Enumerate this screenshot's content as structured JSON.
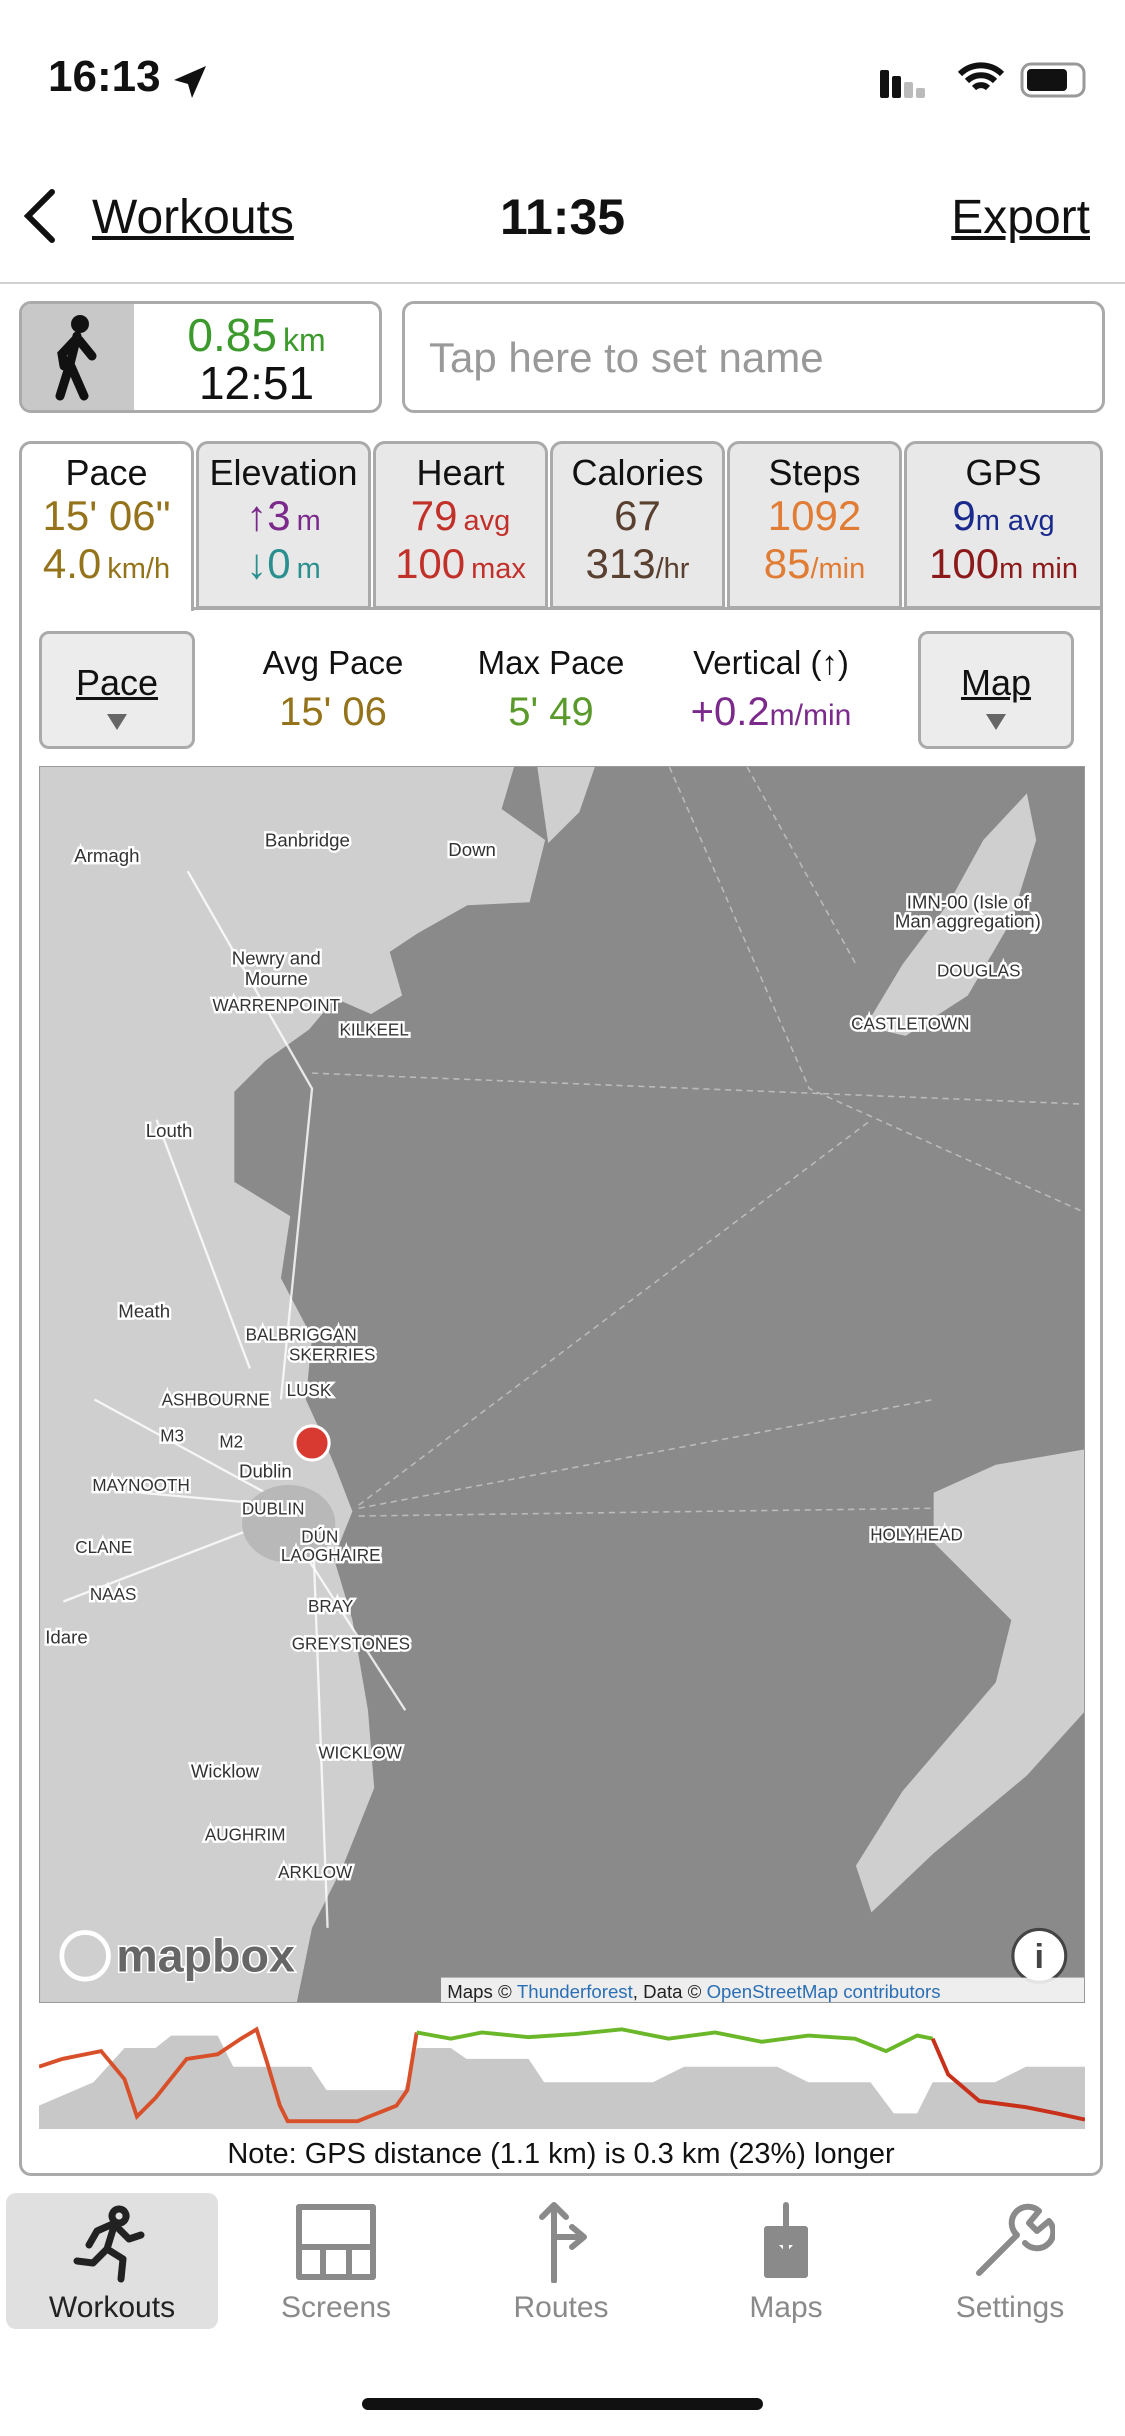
{
  "status_bar": {
    "time": "16:13"
  },
  "nav": {
    "back": "Workouts",
    "title": "11:35",
    "action": "Export"
  },
  "summary": {
    "distance": "0.85",
    "distance_unit": "km",
    "duration": "12:51",
    "name_placeholder": "Tap here to set name"
  },
  "tabs": [
    {
      "label": "Pace",
      "line1": [
        "15' 06\""
      ],
      "line2": [
        "4.0",
        "km/h"
      ]
    },
    {
      "label": "Elevation",
      "line1": [
        "↑3",
        "m"
      ],
      "line2": [
        "↓0",
        "m"
      ]
    },
    {
      "label": "Heart",
      "line1": [
        "79",
        "avg"
      ],
      "line2": [
        "100",
        "max"
      ]
    },
    {
      "label": "Calories",
      "line1": [
        "67"
      ],
      "line2": [
        "313",
        "/hr"
      ]
    },
    {
      "label": "Steps",
      "line1": [
        "1092"
      ],
      "line2": [
        "85",
        "/min"
      ]
    },
    {
      "label": "GPS",
      "line1": [
        "9",
        "m avg"
      ],
      "line2": [
        "100",
        "m min"
      ]
    }
  ],
  "stats": {
    "button_left": "Pace",
    "items": [
      {
        "label": "Avg Pace",
        "value": [
          "15' 06"
        ]
      },
      {
        "label": "Max Pace",
        "value": [
          "5' 49"
        ]
      },
      {
        "label": "Vertical (↑)",
        "value": [
          "+0.2",
          "m/min"
        ]
      }
    ],
    "button_right": "Map"
  },
  "map": {
    "labels": [
      "Armagh",
      "Banbridge",
      "Down",
      "IMN-00 (Isle of",
      "Man aggregation)",
      "Newry and",
      "Mourne",
      "WARRENPOINT",
      "KILKEEL",
      "DOUGLAS",
      "CASTLETOWN",
      "Louth",
      "Meath",
      "BALBRIGGAN",
      "SKERRIES",
      "ASHBOURNE",
      "LUSK",
      "M3",
      "M2",
      "Dublin",
      "MAYNOOTH",
      "DUBLIN",
      "DÚN",
      "LAOGHAIRE",
      "HOLYHEAD",
      "CLANE",
      "NAAS",
      "Idare",
      "BRAY",
      "GREYSTONES",
      "WICKLOW",
      "Wicklow",
      "AUGHRIM",
      "ARKLOW"
    ],
    "logo": "mapbox",
    "attribution": [
      "Maps © ",
      "Thunderforest",
      ", Data © ",
      "OpenStreetMap contributors"
    ]
  },
  "note": "Note: GPS distance (1.1 km) is 0.3 km (23%) longer",
  "tab_bar": [
    "Workouts",
    "Screens",
    "Routes",
    "Maps",
    "Settings"
  ]
}
